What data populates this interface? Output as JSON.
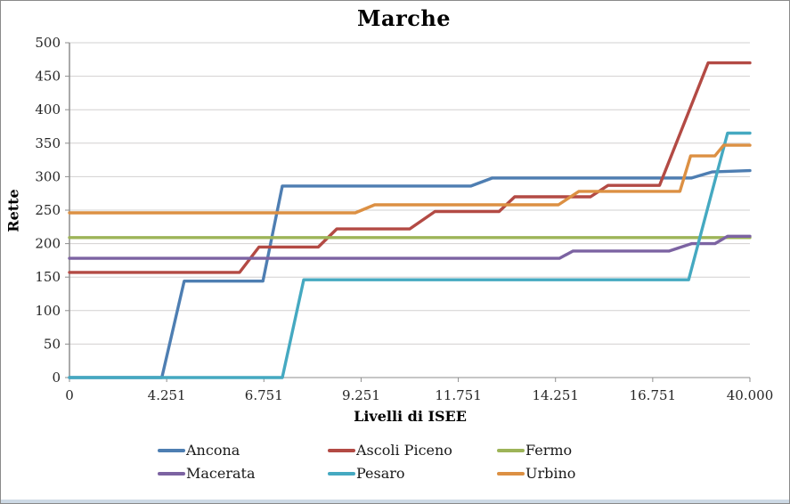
{
  "chart_data": {
    "type": "line",
    "title": "Marche",
    "xlabel": "Livelli di ISEE",
    "ylabel": "Rette",
    "x_tick_labels": [
      "0",
      "4.251",
      "6.751",
      "9.251",
      "11.751",
      "14.251",
      "16.751",
      "40.000"
    ],
    "x_axis_note": "category-style axis; series x values are in tick-index units 0-7 matching x_tick_labels",
    "ylim": [
      0,
      500
    ],
    "y_tick_step": 50,
    "grid": "horizontal",
    "legend_position": "bottom",
    "colors": {
      "grid": "#d2d0d0",
      "axis": "#8e8e8e",
      "tick_text": "#262626",
      "title_text": "#000000"
    },
    "series": [
      {
        "name": "Ancona",
        "color": "#4E7EB2",
        "points": [
          [
            0,
            0
          ],
          [
            0.95,
            0
          ],
          [
            1.18,
            144
          ],
          [
            1.99,
            144
          ],
          [
            2.19,
            286
          ],
          [
            4.13,
            286
          ],
          [
            4.35,
            298
          ],
          [
            6.4,
            298
          ],
          [
            6.61,
            307
          ],
          [
            7,
            309
          ]
        ]
      },
      {
        "name": "Ascoli Piceno",
        "color": "#B34A44",
        "points": [
          [
            0,
            157
          ],
          [
            1.75,
            157
          ],
          [
            1.95,
            195
          ],
          [
            2.56,
            195
          ],
          [
            2.75,
            222
          ],
          [
            3.5,
            222
          ],
          [
            3.76,
            248
          ],
          [
            4.42,
            248
          ],
          [
            4.58,
            270
          ],
          [
            5.36,
            270
          ],
          [
            5.54,
            287
          ],
          [
            6.07,
            287
          ],
          [
            6.57,
            470
          ],
          [
            7,
            470
          ]
        ]
      },
      {
        "name": "Fermo",
        "color": "#9DB458",
        "points": [
          [
            0,
            209
          ],
          [
            7,
            209
          ]
        ]
      },
      {
        "name": "Macerata",
        "color": "#7C63A2",
        "points": [
          [
            0,
            178
          ],
          [
            5.04,
            178
          ],
          [
            5.18,
            189
          ],
          [
            6.17,
            189
          ],
          [
            6.4,
            200
          ],
          [
            6.64,
            200
          ],
          [
            6.77,
            211
          ],
          [
            7,
            211
          ]
        ]
      },
      {
        "name": "Pesaro",
        "color": "#45A9C1",
        "points": [
          [
            0,
            0
          ],
          [
            2.19,
            0
          ],
          [
            2.41,
            146
          ],
          [
            6.37,
            146
          ],
          [
            6.77,
            365
          ],
          [
            7,
            365
          ]
        ]
      },
      {
        "name": "Urbino",
        "color": "#DC9043",
        "points": [
          [
            0,
            246
          ],
          [
            2.94,
            246
          ],
          [
            3.14,
            258
          ],
          [
            5.03,
            258
          ],
          [
            5.24,
            278
          ],
          [
            6.28,
            278
          ],
          [
            6.39,
            331
          ],
          [
            6.64,
            331
          ],
          [
            6.73,
            347
          ],
          [
            7,
            347
          ]
        ]
      }
    ]
  }
}
